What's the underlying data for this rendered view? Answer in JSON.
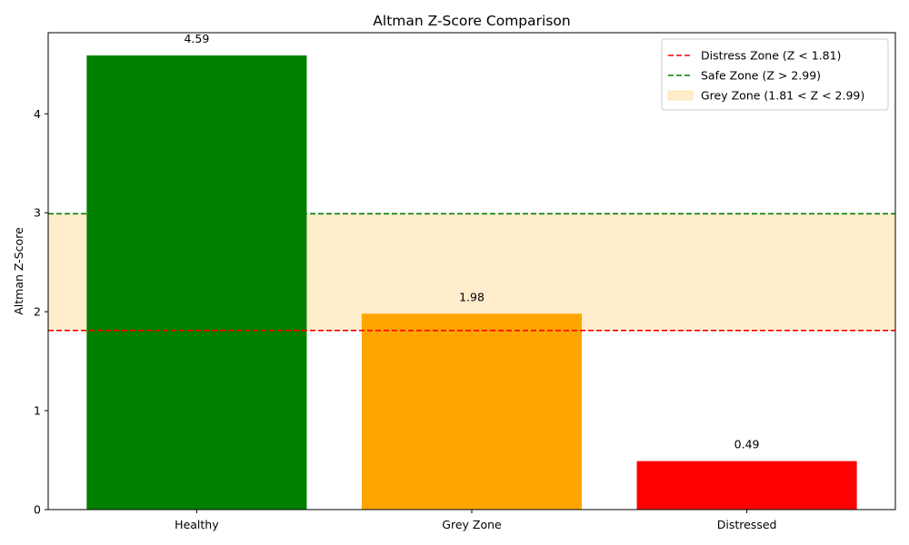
{
  "chart_data": {
    "type": "bar",
    "title": "Altman Z-Score Comparison",
    "xlabel": "",
    "ylabel": "Altman Z-Score",
    "categories": [
      "Healthy",
      "Grey Zone",
      "Distressed"
    ],
    "values": [
      4.59,
      1.98,
      0.49
    ],
    "value_labels": [
      "4.59",
      "1.98",
      "0.49"
    ],
    "bar_colors": [
      "#008000",
      "#FFA500",
      "#FF0000"
    ],
    "ylim": [
      0,
      4.82
    ],
    "yticks": [
      0,
      1,
      2,
      3,
      4
    ],
    "ytick_labels": [
      "0",
      "1",
      "2",
      "3",
      "4"
    ],
    "grid": false,
    "reference_lines": [
      {
        "label": "Distress Zone (Z < 1.81)",
        "value": 1.81,
        "color": "#FF0000",
        "style": "dashed"
      },
      {
        "label": "Safe Zone (Z > 2.99)",
        "value": 2.99,
        "color": "#008000",
        "style": "dashed"
      }
    ],
    "bands": [
      {
        "label": "Grey Zone (1.81 < Z < 2.99)",
        "from": 1.81,
        "to": 2.99,
        "color": "#FFA500",
        "opacity": 0.2
      }
    ],
    "legend_position": "top-right"
  }
}
